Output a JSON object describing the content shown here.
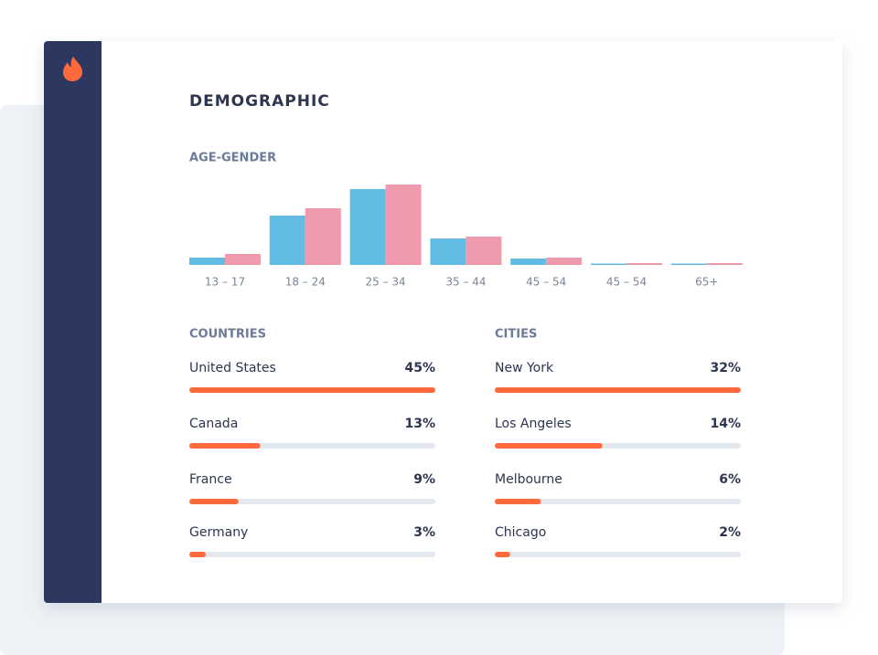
{
  "title": "DEMOGRAPHIC",
  "age_gender": {
    "type": "bar",
    "title": "AGE-GENDER",
    "categories": [
      "13 – 17",
      "18 – 24",
      "25 – 34",
      "35 – 44",
      "45 – 54",
      "45 – 54",
      "65+"
    ],
    "series": [
      {
        "color": "#62bbe2",
        "values": [
          8,
          54,
          83,
          29,
          7,
          1.5,
          1.5
        ]
      },
      {
        "color": "#f09aad",
        "values": [
          12,
          62,
          88,
          31,
          8,
          2,
          2
        ]
      }
    ]
  },
  "countries": {
    "title": "COUNTRIES",
    "color": "#ff6a3d",
    "items": [
      {
        "name": "United States",
        "value": 45,
        "value_label": "45%"
      },
      {
        "name": "Canada",
        "value": 13,
        "value_label": "13%"
      },
      {
        "name": "France",
        "value": 9,
        "value_label": "9%"
      },
      {
        "name": "Germany",
        "value": 3,
        "value_label": "3%"
      }
    ]
  },
  "cities": {
    "title": "CITIES",
    "color": "#ff6a3d",
    "items": [
      {
        "name": "New York",
        "value": 32,
        "value_label": "32%"
      },
      {
        "name": "Los Angeles",
        "value": 14,
        "value_label": "14%"
      },
      {
        "name": "Melbourne",
        "value": 6,
        "value_label": "6%"
      },
      {
        "name": "Chicago",
        "value": 2,
        "value_label": "2%"
      }
    ]
  }
}
